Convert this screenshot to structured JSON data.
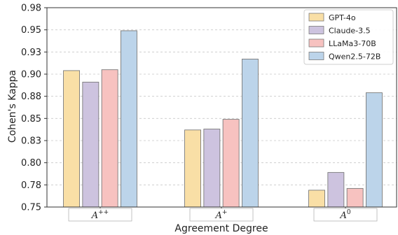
{
  "chart_data": {
    "type": "bar",
    "title": "",
    "xlabel": "Agreement Degree",
    "ylabel": "Cohen's Kappa",
    "ylim": [
      0.75,
      0.975
    ],
    "yticks": [
      0.75,
      0.775,
      0.8,
      0.825,
      0.85,
      0.875,
      0.9,
      0.925,
      0.95,
      0.975
    ],
    "ytick_labels": [
      "0.75",
      "0.78",
      "0.80",
      "0.83",
      "0.85",
      "0.88",
      "0.90",
      "0.93",
      "0.95",
      "0.98"
    ],
    "grid": true,
    "legend_position": "top-right",
    "categories": [
      {
        "base": "A",
        "sup": "++"
      },
      {
        "base": "A",
        "sup": "+"
      },
      {
        "base": "A",
        "sup": "0"
      }
    ],
    "series": [
      {
        "name": "GPT-4o",
        "color": "#f9dfa6",
        "values": [
          0.904,
          0.837,
          0.769
        ]
      },
      {
        "name": "Claude-3.5",
        "color": "#cdc3df",
        "values": [
          0.891,
          0.838,
          0.789
        ]
      },
      {
        "name": "LLaMa3-70B",
        "color": "#f7c2c0",
        "values": [
          0.905,
          0.849,
          0.771
        ]
      },
      {
        "name": "Qwen2.5-72B",
        "color": "#bcd4ea",
        "values": [
          0.949,
          0.917,
          0.879
        ]
      }
    ]
  }
}
